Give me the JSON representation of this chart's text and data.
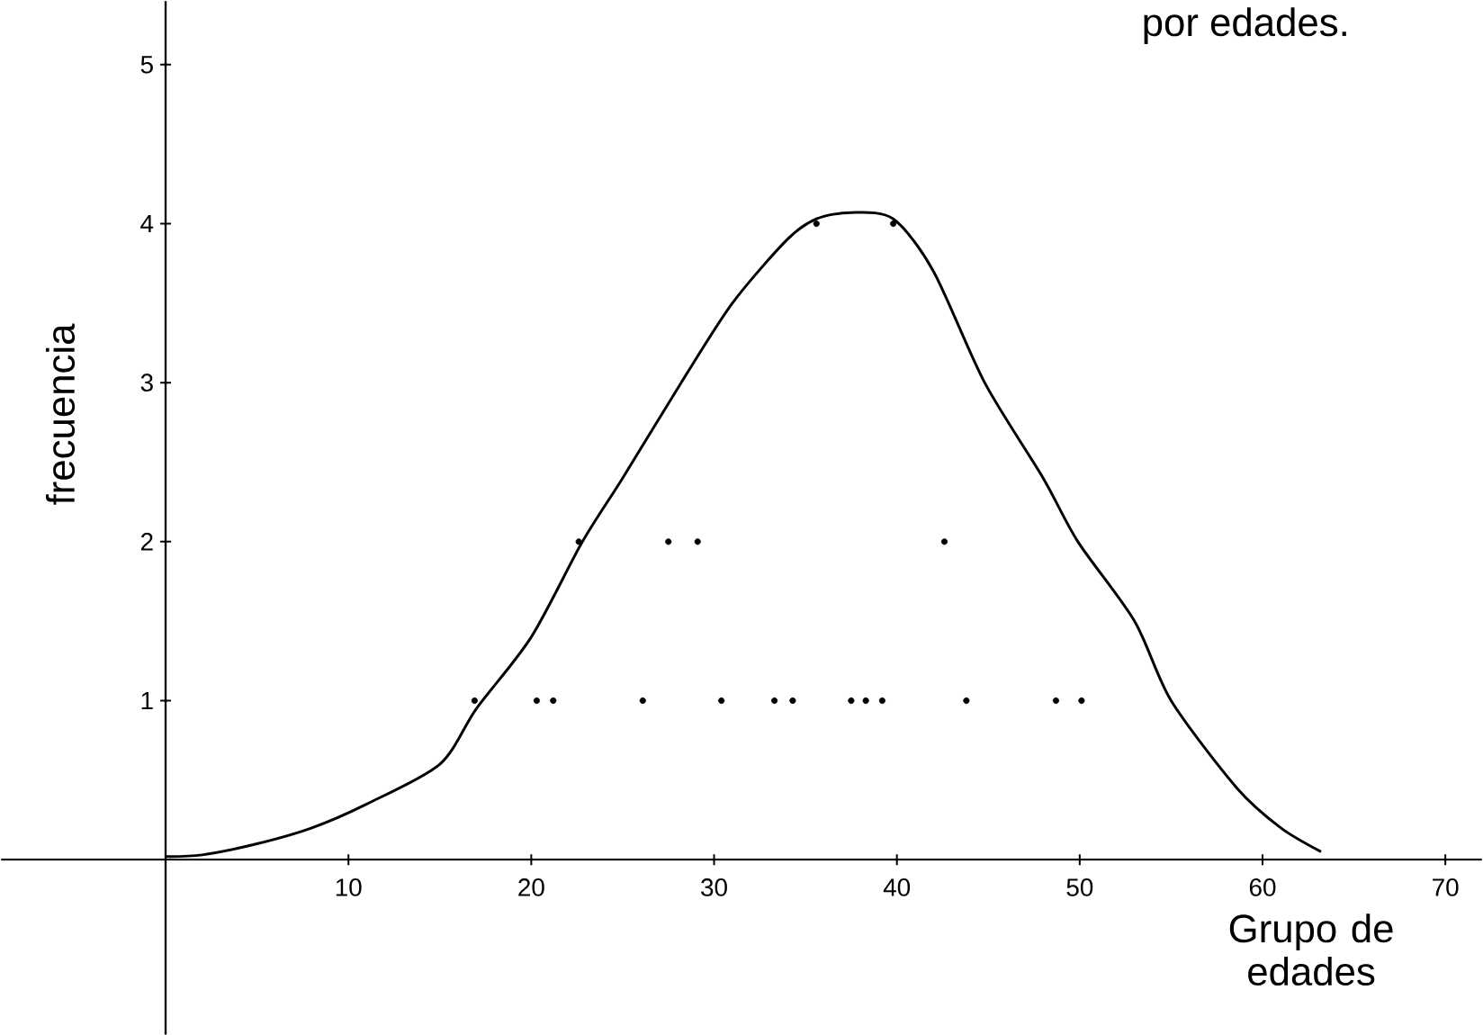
{
  "chart_data": {
    "type": "line",
    "title": "por edades.",
    "xlabel": "Grupo de edades",
    "ylabel": "frecuencia",
    "xlim": [
      -9,
      72
    ],
    "ylim": [
      -1.1,
      5.4
    ],
    "xticks": [
      10,
      20,
      30,
      40,
      50,
      60,
      70
    ],
    "yticks": [
      1,
      2,
      3,
      4,
      5
    ],
    "series": [
      {
        "color": "#000000",
        "marker": "none",
        "x": [
          0,
          2,
          5,
          8,
          11,
          15,
          17,
          20,
          22.8,
          25,
          28.2,
          31,
          34,
          35.6,
          37.5,
          39.8,
          42,
          44.8,
          48,
          49.9,
          53,
          55,
          58.6,
          61,
          63.2
        ],
        "values": [
          0.02,
          0.03,
          0.1,
          0.2,
          0.35,
          0.6,
          0.95,
          1.4,
          2.0,
          2.4,
          3.0,
          3.5,
          3.9,
          4.03,
          4.07,
          4.03,
          3.7,
          3.0,
          2.4,
          2.0,
          1.5,
          1.0,
          0.45,
          0.2,
          0.05
        ]
      },
      {
        "type": "scatter",
        "color": "#000000",
        "marker": "circle",
        "x": [
          16.9,
          20.3,
          21.2,
          26.1,
          30.4,
          33.3,
          34.3,
          37.5,
          38.3,
          39.2,
          43.8,
          48.7,
          50.1,
          22.6,
          27.5,
          29.1,
          42.6,
          35.6,
          39.8
        ],
        "values": [
          1,
          1,
          1,
          1,
          1,
          1,
          1,
          1,
          1,
          1,
          1,
          1,
          1,
          2,
          2,
          2,
          2,
          4,
          4
        ]
      }
    ]
  }
}
